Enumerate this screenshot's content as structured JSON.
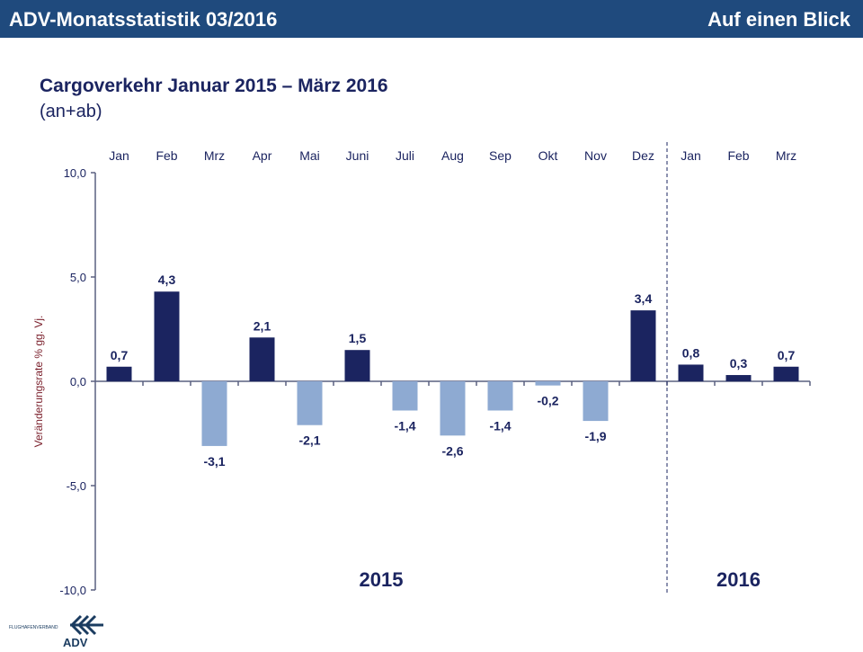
{
  "header": {
    "left": "ADV-Monatsstatistik 03/2016",
    "right": "Auf einen Blick"
  },
  "title": "Cargoverkehr Januar 2015 – März 2016",
  "subtitle": "(an+ab)",
  "logo_text": "FLUGHAFENVERBAND ADV",
  "chart_data": {
    "type": "bar",
    "categories": [
      "Jan",
      "Feb",
      "Mrz",
      "Apr",
      "Mai",
      "Juni",
      "Juli",
      "Aug",
      "Sep",
      "Okt",
      "Nov",
      "Dez",
      "Jan",
      "Feb",
      "Mrz"
    ],
    "values": [
      0.7,
      4.3,
      -3.1,
      2.1,
      -2.1,
      1.5,
      -1.4,
      -2.6,
      -1.4,
      -0.2,
      -1.9,
      3.4,
      0.8,
      0.3,
      0.7
    ],
    "data_labels": [
      "0,7",
      "4,3",
      "-3,1",
      "2,1",
      "-2,1",
      "1,5",
      "-1,4",
      "-2,6",
      "-1,4",
      "-0,2",
      "-1,9",
      "3,4",
      "0,8",
      "0,3",
      "0,7"
    ],
    "ylabel": "Veränderungsrate  % gg. Vj.",
    "ylim": [
      -10,
      10
    ],
    "yticks": [
      "10,0",
      "5,0",
      "0,0",
      "-5,0",
      "-10,0"
    ],
    "ytick_values": [
      10,
      5,
      0,
      -5,
      -10
    ],
    "groups": [
      {
        "label": "2015",
        "count": 12
      },
      {
        "label": "2016",
        "count": 3
      }
    ],
    "colors": {
      "positive": "#1b2460",
      "negative": "#8eaad2",
      "axis": "#5a6080"
    },
    "grid": false
  }
}
